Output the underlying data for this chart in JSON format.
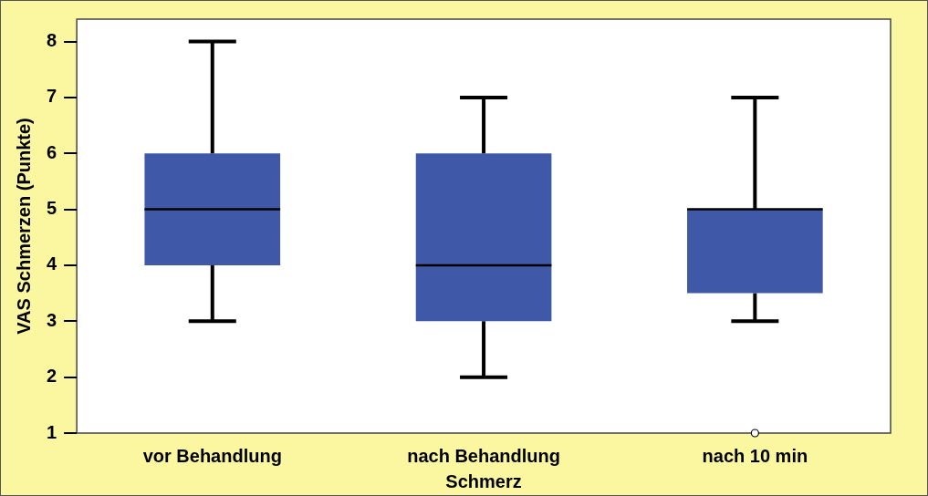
{
  "chart_data": {
    "type": "box",
    "xlabel": "Schmerz",
    "ylabel": "VAS Schmerzen (Punkte)",
    "categories": [
      "vor Behandlung",
      "nach Behandlung",
      "nach 10 min"
    ],
    "color": "#3f58a8",
    "boxes": [
      {
        "low": 3,
        "q1": 4,
        "median": 5,
        "q3": 6,
        "high": 8
      },
      {
        "low": 2,
        "q1": 3,
        "median": 4,
        "q3": 6,
        "high": 7
      },
      {
        "low": 3,
        "q1": 3.5,
        "median": 5,
        "q3": 5,
        "high": 7,
        "outliers": [
          1
        ]
      }
    ],
    "ylim": [
      1,
      8.4
    ],
    "yticks": [
      1,
      2,
      3,
      4,
      5,
      6,
      7,
      8
    ],
    "grid": false,
    "legend": false
  }
}
